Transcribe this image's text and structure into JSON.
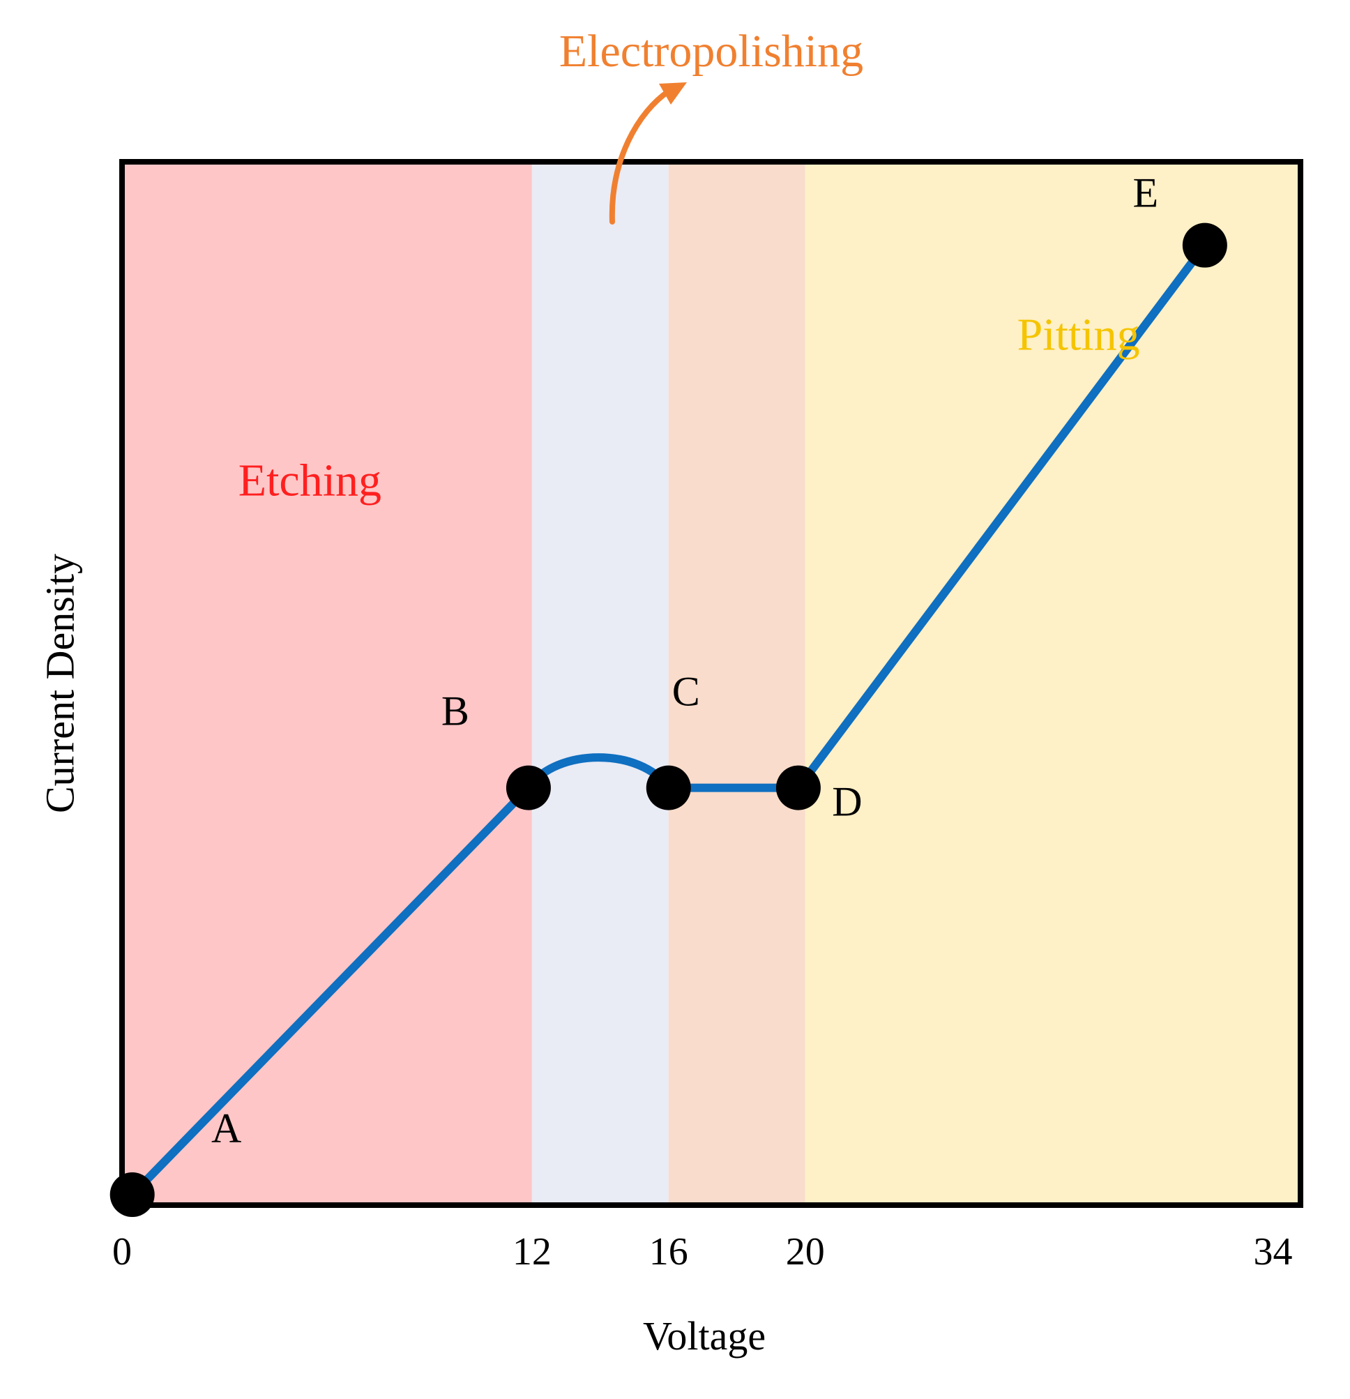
{
  "chart_data": {
    "type": "line",
    "title": "",
    "xlabel": "Voltage",
    "ylabel": "Current Density",
    "xlim": [
      0,
      34.5
    ],
    "ylim": [
      0,
      10
    ],
    "x_ticks": [
      {
        "value": 0,
        "label": "0"
      },
      {
        "value": 12,
        "label": "12"
      },
      {
        "value": 16,
        "label": "16"
      },
      {
        "value": 20,
        "label": "20"
      },
      {
        "value": 34,
        "label": "34"
      }
    ],
    "regions": [
      {
        "name": "etching",
        "label": "Etching",
        "x_start": 0,
        "x_end": 12,
        "fill": "#fec6c7",
        "label_color": "#ff1f1f",
        "label_at": [
          5.5,
          6.8
        ]
      },
      {
        "name": "electropolishing-1",
        "label": "",
        "x_start": 12,
        "x_end": 16,
        "fill": "#e9ebf5",
        "label_color": "",
        "label_at": null
      },
      {
        "name": "electropolishing-2",
        "label": "",
        "x_start": 16,
        "x_end": 20,
        "fill": "#f9dccb",
        "label_color": "",
        "label_at": null
      },
      {
        "name": "pitting",
        "label": "Pitting",
        "x_start": 20,
        "x_end": 34.5,
        "fill": "#fef0c7",
        "label_color": "#f5c400",
        "label_at": [
          28,
          8.2
        ]
      }
    ],
    "electropolishing_label": {
      "text": "Electropolishing",
      "color": "#f08030"
    },
    "series": [
      {
        "name": "polarization-curve",
        "color": "#0f6fc0",
        "points": [
          {
            "x": 0.3,
            "y": 0.1
          },
          {
            "x": 11.9,
            "y": 4.0
          },
          {
            "x": 16.0,
            "y": 4.0
          },
          {
            "x": 19.8,
            "y": 4.0
          },
          {
            "x": 31.7,
            "y": 9.2
          }
        ]
      }
    ],
    "points": [
      {
        "label": "A",
        "x": 0.3,
        "y": 0.1
      },
      {
        "label": "B",
        "x": 11.9,
        "y": 4.0
      },
      {
        "label": "C",
        "x": 16.0,
        "y": 4.0
      },
      {
        "label": "D",
        "x": 19.8,
        "y": 4.0
      },
      {
        "label": "E",
        "x": 31.7,
        "y": 9.2
      }
    ],
    "grid": false,
    "legend": "none"
  }
}
